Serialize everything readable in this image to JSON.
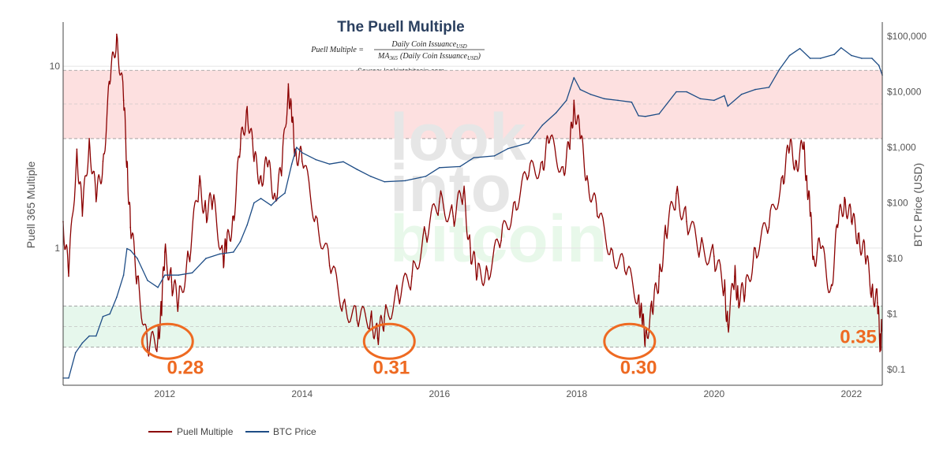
{
  "chart_data": {
    "type": "line",
    "title": "The Puell Multiple",
    "formula": {
      "lhs": "Puell Multiple =",
      "numerator": "Daily Coin Issuance",
      "numerator_sub": "USD",
      "denominator": "MA",
      "denominator_sub": "365",
      "denominator_rest": "(Daily Coin Issuance",
      "denominator_rest_sub": "USD",
      "denominator_close": ")"
    },
    "source": "Source: lookintobitcoin.com",
    "watermark": [
      "look",
      "into",
      "bitcoin"
    ],
    "xlabel": "",
    "ylabel_left": "Puell 365 Multiple",
    "ylabel_right": "BTC Price (USD)",
    "x_range": [
      2010.52,
      2022.45
    ],
    "x_ticks": [
      2012,
      2014,
      2016,
      2018,
      2020,
      2022
    ],
    "x_tick_labels": [
      "2012",
      "2014",
      "2016",
      "2018",
      "2020",
      "2022"
    ],
    "ylim_left": [
      0.176,
      17.5
    ],
    "ylim_left_scale": "log",
    "y_left_ticks": [
      1,
      10
    ],
    "y_left_tick_labels": [
      "1",
      "10"
    ],
    "ylim_right": [
      0.052,
      180000
    ],
    "ylim_right_scale": "log",
    "y_right_ticks": [
      0.1,
      1,
      10,
      100,
      1000,
      10000,
      100000
    ],
    "y_right_tick_labels": [
      "$0.1",
      "$1",
      "$10",
      "$100",
      "$1,000",
      "$10,000",
      "$100,000"
    ],
    "bands": [
      {
        "name": "top-zone",
        "from": 4.0,
        "to": 9.5,
        "color": "#fde0e0",
        "midline": 6.2
      },
      {
        "name": "bottom-zone",
        "from": 0.285,
        "to": 0.48,
        "color": "#e6f7ec",
        "midline": 0.37
      }
    ],
    "series": [
      {
        "name": "Puell Multiple",
        "color": "#8b0000",
        "axis": "left",
        "x": [
          2010.52,
          2010.6,
          2010.72,
          2010.8,
          2010.9,
          2011.0,
          2011.1,
          2011.2,
          2011.3,
          2011.4,
          2011.45,
          2011.5,
          2011.6,
          2011.75,
          2011.9,
          2011.95,
          2012.0,
          2012.1,
          2012.2,
          2012.35,
          2012.5,
          2012.6,
          2012.7,
          2012.85,
          2012.9,
          2013.0,
          2013.1,
          2013.2,
          2013.3,
          2013.4,
          2013.5,
          2013.6,
          2013.7,
          2013.8,
          2013.85,
          2013.9,
          2014.0,
          2014.2,
          2014.4,
          2014.6,
          2014.8,
          2015.0,
          2015.1,
          2015.2,
          2015.4,
          2015.6,
          2015.8,
          2016.0,
          2016.2,
          2016.35,
          2016.45,
          2016.55,
          2016.7,
          2016.9,
          2017.1,
          2017.3,
          2017.5,
          2017.6,
          2017.8,
          2017.9,
          2017.96,
          2018.05,
          2018.15,
          2018.3,
          2018.5,
          2018.7,
          2018.9,
          2018.95,
          2019.0,
          2019.1,
          2019.2,
          2019.3,
          2019.45,
          2019.6,
          2019.8,
          2020.0,
          2020.15,
          2020.2,
          2020.3,
          2020.35,
          2020.45,
          2020.6,
          2020.8,
          2021.0,
          2021.1,
          2021.2,
          2021.3,
          2021.35,
          2021.4,
          2021.45,
          2021.55,
          2021.7,
          2021.8,
          2021.9,
          2022.0,
          2022.1,
          2022.2,
          2022.3,
          2022.38,
          2022.42,
          2022.44
        ],
        "values": [
          1.4,
          0.7,
          3.5,
          1.5,
          4.0,
          1.8,
          3.0,
          8.0,
          15.0,
          6.5,
          3.0,
          1.3,
          0.7,
          0.28,
          0.32,
          0.45,
          0.95,
          0.65,
          0.5,
          0.9,
          2.2,
          1.6,
          1.8,
          0.9,
          1.0,
          1.5,
          3.5,
          6.0,
          3.0,
          2.5,
          2.8,
          2.0,
          2.5,
          8.0,
          5.0,
          3.5,
          3.0,
          1.5,
          0.8,
          0.5,
          0.4,
          0.42,
          0.32,
          0.42,
          0.55,
          0.7,
          1.2,
          1.8,
          1.5,
          2.0,
          1.0,
          0.7,
          0.75,
          1.1,
          1.8,
          2.5,
          3.0,
          3.8,
          2.8,
          3.5,
          6.5,
          4.0,
          2.5,
          1.5,
          1.0,
          0.75,
          0.55,
          0.4,
          0.33,
          0.45,
          0.7,
          1.2,
          2.0,
          1.4,
          1.0,
          0.9,
          0.6,
          0.38,
          0.7,
          0.55,
          0.55,
          1.0,
          1.3,
          2.5,
          3.5,
          3.0,
          3.5,
          2.5,
          1.5,
          0.9,
          1.0,
          0.6,
          1.3,
          1.9,
          1.4,
          1.2,
          0.9,
          0.6,
          0.5,
          0.3,
          0.35
        ]
      },
      {
        "name": "BTC Price",
        "color": "#1e4d86",
        "axis": "right",
        "x": [
          2010.52,
          2010.6,
          2010.7,
          2010.8,
          2010.9,
          2011.0,
          2011.1,
          2011.2,
          2011.3,
          2011.4,
          2011.45,
          2011.5,
          2011.6,
          2011.75,
          2011.9,
          2012.0,
          2012.2,
          2012.4,
          2012.6,
          2012.8,
          2013.0,
          2013.1,
          2013.2,
          2013.3,
          2013.4,
          2013.55,
          2013.65,
          2013.75,
          2013.85,
          2013.92,
          2014.0,
          2014.2,
          2014.4,
          2014.6,
          2014.8,
          2015.0,
          2015.2,
          2015.5,
          2015.8,
          2016.0,
          2016.3,
          2016.5,
          2016.8,
          2017.0,
          2017.3,
          2017.5,
          2017.7,
          2017.85,
          2017.96,
          2018.05,
          2018.2,
          2018.4,
          2018.6,
          2018.8,
          2018.9,
          2019.0,
          2019.2,
          2019.45,
          2019.6,
          2019.8,
          2020.0,
          2020.15,
          2020.2,
          2020.4,
          2020.6,
          2020.8,
          2020.95,
          2021.1,
          2021.25,
          2021.4,
          2021.55,
          2021.75,
          2021.85,
          2022.0,
          2022.15,
          2022.3,
          2022.4,
          2022.45
        ],
        "values": [
          0.07,
          0.07,
          0.2,
          0.3,
          0.4,
          0.4,
          0.9,
          1.0,
          2.0,
          5.0,
          15.0,
          14.0,
          10.0,
          4.0,
          3.0,
          5.0,
          5.0,
          5.5,
          10.0,
          12.0,
          13.0,
          20.0,
          40.0,
          100.0,
          120.0,
          90.0,
          120.0,
          150.0,
          500.0,
          1000.0,
          800.0,
          600.0,
          500.0,
          550.0,
          400.0,
          300.0,
          240.0,
          250.0,
          300.0,
          430.0,
          450.0,
          650.0,
          700.0,
          950.0,
          1200.0,
          2500.0,
          4200.0,
          7000.0,
          18000.0,
          11000.0,
          9000.0,
          7500.0,
          7000.0,
          6500.0,
          3700.0,
          3600.0,
          4000.0,
          10000.0,
          10000.0,
          7500.0,
          7000.0,
          8500.0,
          5500.0,
          9000.0,
          11000.0,
          12000.0,
          25000.0,
          45000.0,
          60000.0,
          40000.0,
          40000.0,
          47000.0,
          62000.0,
          45000.0,
          40000.0,
          40000.0,
          30000.0,
          20000.0
        ]
      }
    ],
    "annotations": [
      {
        "label": "0.28",
        "x": 2012.3,
        "y_left": 0.203
      },
      {
        "label": "0.31",
        "x": 2015.3,
        "y_left": 0.203
      },
      {
        "label": "0.30",
        "x": 2018.9,
        "y_left": 0.203
      },
      {
        "label": "0.35",
        "x": 2022.1,
        "y_left": 0.3
      }
    ],
    "circles": [
      {
        "x": 2012.04,
        "y_left": 0.307
      },
      {
        "x": 2015.27,
        "y_left": 0.307
      },
      {
        "x": 2018.77,
        "y_left": 0.307
      }
    ],
    "legend": {
      "placement": "bottom-left",
      "items": [
        "Puell Multiple",
        "BTC Price"
      ]
    }
  }
}
